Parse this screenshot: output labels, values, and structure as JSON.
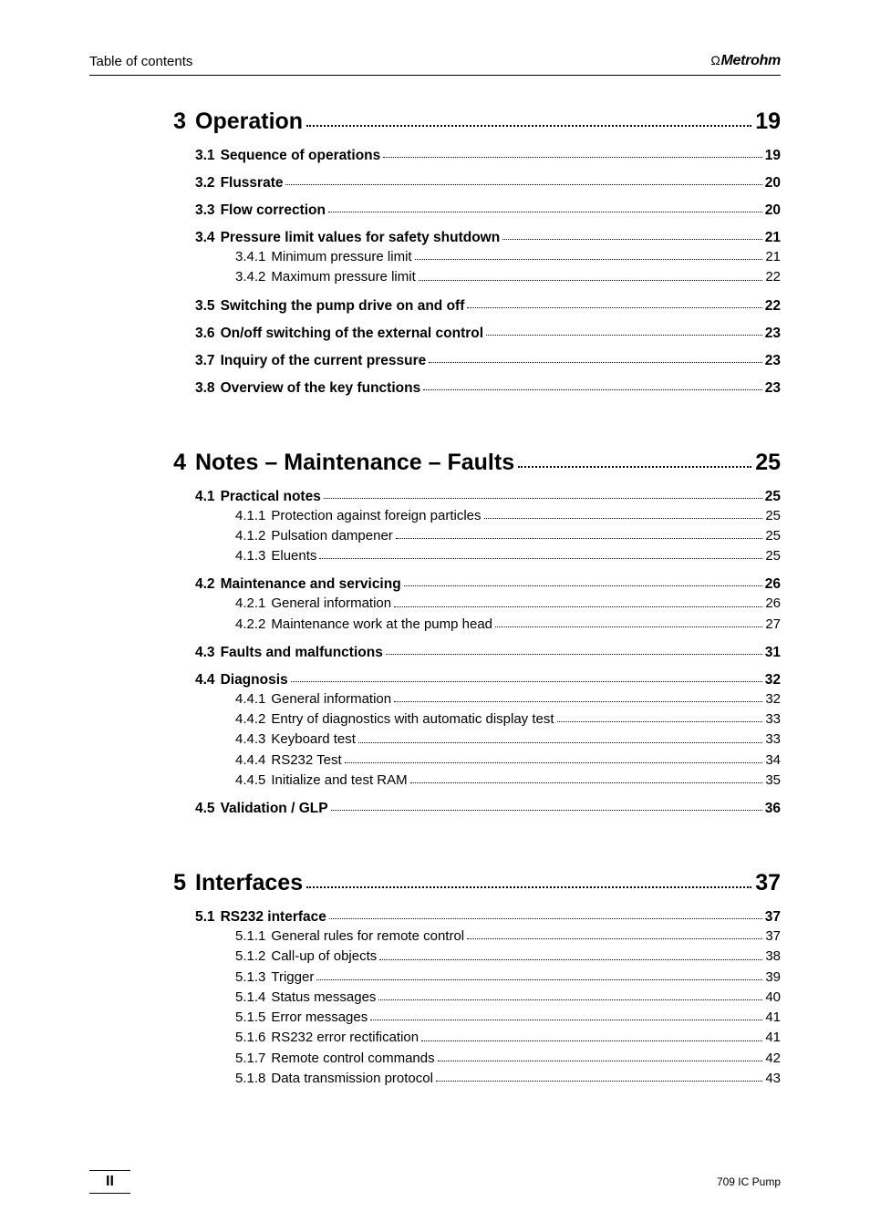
{
  "header": {
    "left": "Table of contents",
    "right": "Metrohm"
  },
  "footer": {
    "left": "II",
    "right": "709 IC Pump"
  },
  "chapters": [
    {
      "num": "3",
      "title": "Operation",
      "page": "19",
      "sections": [
        {
          "num": "3.1",
          "title": "Sequence of operations",
          "page": "19",
          "subs": []
        },
        {
          "num": "3.2",
          "title": "Flussrate",
          "page": "20",
          "subs": []
        },
        {
          "num": "3.3",
          "title": "Flow correction",
          "page": "20",
          "subs": []
        },
        {
          "num": "3.4",
          "title": "Pressure limit values for safety shutdown",
          "page": "21",
          "subs": [
            {
              "num": "3.4.1",
              "title": "Minimum pressure limit",
              "page": "21"
            },
            {
              "num": "3.4.2",
              "title": "Maximum pressure limit",
              "page": "22"
            }
          ]
        },
        {
          "num": "3.5",
          "title": "Switching the pump drive on and off",
          "page": "22",
          "subs": []
        },
        {
          "num": "3.6",
          "title": "On/off switching of the external control",
          "page": "23",
          "subs": []
        },
        {
          "num": "3.7",
          "title": "Inquiry of the current pressure",
          "page": "23",
          "subs": []
        },
        {
          "num": "3.8",
          "title": "Overview of the key functions",
          "page": "23",
          "subs": []
        }
      ]
    },
    {
      "num": "4",
      "title": "Notes – Maintenance – Faults",
      "page": "25",
      "sections": [
        {
          "num": "4.1",
          "title": "Practical notes",
          "page": "25",
          "subs": [
            {
              "num": "4.1.1",
              "title": "Protection against foreign particles",
              "page": "25"
            },
            {
              "num": "4.1.2",
              "title": "Pulsation dampener",
              "page": "25"
            },
            {
              "num": "4.1.3",
              "title": "Eluents",
              "page": "25"
            }
          ]
        },
        {
          "num": "4.2",
          "title": "Maintenance and servicing",
          "page": "26",
          "subs": [
            {
              "num": "4.2.1",
              "title": "General information",
              "page": "26"
            },
            {
              "num": "4.2.2",
              "title": "Maintenance work at the pump head",
              "page": "27"
            }
          ]
        },
        {
          "num": "4.3",
          "title": "Faults and malfunctions",
          "page": "31",
          "subs": []
        },
        {
          "num": "4.4",
          "title": "Diagnosis",
          "page": "32",
          "subs": [
            {
              "num": "4.4.1",
              "title": "General information",
              "page": "32"
            },
            {
              "num": "4.4.2",
              "title": "Entry of diagnostics with automatic display test",
              "page": "33"
            },
            {
              "num": "4.4.3",
              "title": "Keyboard test",
              "page": "33"
            },
            {
              "num": "4.4.4",
              "title": "RS232 Test",
              "page": "34"
            },
            {
              "num": "4.4.5",
              "title": "Initialize and test RAM",
              "page": "35"
            }
          ]
        },
        {
          "num": "4.5",
          "title": "Validation / GLP",
          "page": "36",
          "subs": []
        }
      ]
    },
    {
      "num": "5",
      "title": "Interfaces",
      "page": "37",
      "sections": [
        {
          "num": "5.1",
          "title": "RS232 interface",
          "page": "37",
          "subs": [
            {
              "num": "5.1.1",
              "title": "General rules for remote control",
              "page": "37"
            },
            {
              "num": "5.1.2",
              "title": "Call-up of objects",
              "page": "38"
            },
            {
              "num": "5.1.3",
              "title": "Trigger",
              "page": "39"
            },
            {
              "num": "5.1.4",
              "title": "Status messages",
              "page": "40"
            },
            {
              "num": "5.1.5",
              "title": "Error messages",
              "page": "41"
            },
            {
              "num": "5.1.6",
              "title": "RS232 error rectification",
              "page": "41"
            },
            {
              "num": "5.1.7",
              "title": "Remote control commands",
              "page": "42"
            },
            {
              "num": "5.1.8",
              "title": "Data transmission protocol",
              "page": "43"
            }
          ]
        }
      ]
    }
  ]
}
